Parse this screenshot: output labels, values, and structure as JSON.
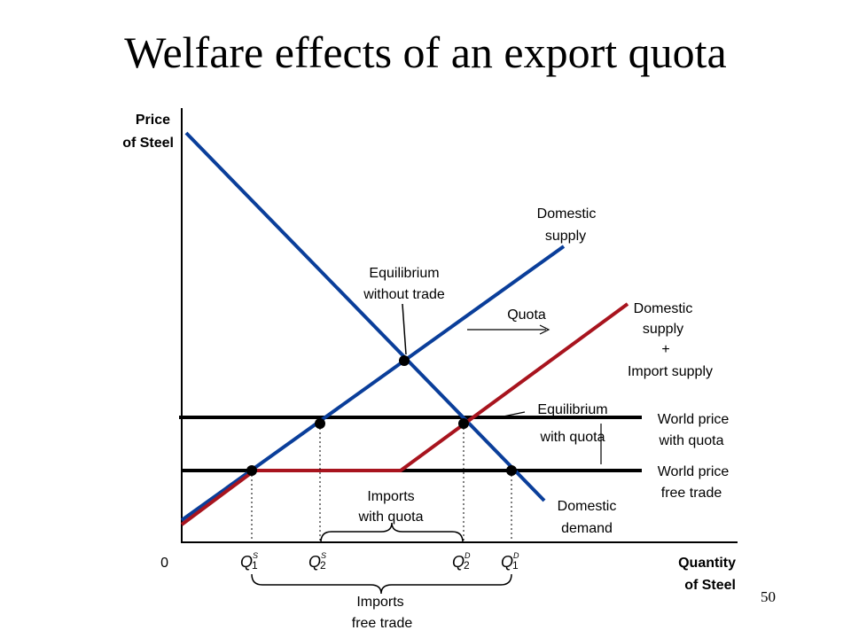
{
  "slide": {
    "title": "Welfare effects of an export quota",
    "page_number": "50"
  },
  "axes": {
    "y_label_line1": "Price",
    "y_label_line2": "of Steel",
    "x_label_line1": "Quantity",
    "x_label_line2": "of Steel",
    "origin": "0"
  },
  "curves": {
    "domestic_supply": [
      "Domestic",
      "supply"
    ],
    "domestic_demand": [
      "Domestic",
      "demand"
    ],
    "supply_plus_imports": [
      "Domestic",
      "supply",
      "+",
      "Import supply"
    ]
  },
  "annotations": {
    "equilibrium_without_trade": [
      "Equilibrium",
      "without trade"
    ],
    "equilibrium_with_quota": [
      "Equilibrium",
      "with quota"
    ],
    "quota": "Quota",
    "world_price_quota": [
      "World price",
      "with quota"
    ],
    "world_price_free": [
      "World price",
      "free trade"
    ],
    "imports_quota": [
      "Imports",
      "with quota"
    ],
    "imports_free": [
      "Imports",
      "free trade"
    ]
  },
  "quantities": {
    "q1s": {
      "letter": "Q",
      "sub": "1",
      "sup": "S"
    },
    "q2s": {
      "letter": "Q",
      "sub": "2",
      "sup": "S"
    },
    "q2d": {
      "letter": "Q",
      "sub": "2",
      "sup": "D"
    },
    "q1d": {
      "letter": "Q",
      "sub": "1",
      "sup": "D"
    }
  },
  "colors": {
    "domestic_curves": "#0a3e9a",
    "supply_plus_imports": "#a8141e",
    "price_lines": "#000000"
  }
}
